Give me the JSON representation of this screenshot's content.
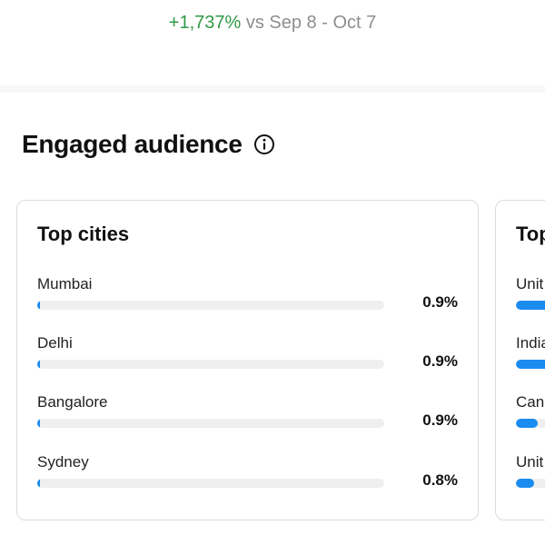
{
  "summary": {
    "delta": "+1,737%",
    "comparison": "vs Sep 8 - Oct 7"
  },
  "section": {
    "title": "Engaged audience",
    "info_icon": "info-circle-icon"
  },
  "top_cities": {
    "title": "Top cities",
    "accent_color": "#1a8cf0",
    "items": [
      {
        "label": "Mumbai",
        "value": "0.9%",
        "percent": 0.9
      },
      {
        "label": "Delhi",
        "value": "0.9%",
        "percent": 0.9
      },
      {
        "label": "Bangalore",
        "value": "0.9%",
        "percent": 0.9
      },
      {
        "label": "Sydney",
        "value": "0.8%",
        "percent": 0.8
      }
    ]
  },
  "top_countries": {
    "title": "Top",
    "items": [
      {
        "label": "Unit",
        "percent": 40
      },
      {
        "label": "India",
        "percent": 40
      },
      {
        "label": "Can",
        "percent": 12
      },
      {
        "label": "Unit",
        "percent": 10
      }
    ]
  }
}
